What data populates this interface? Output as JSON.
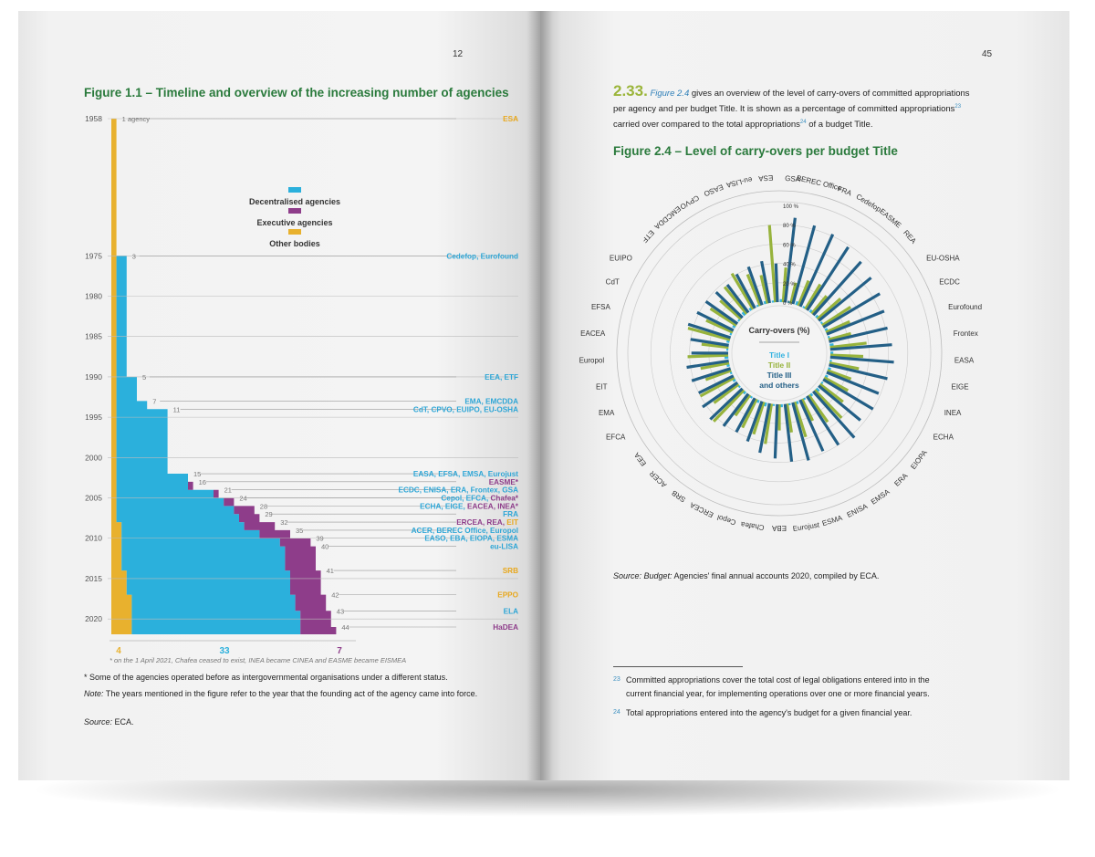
{
  "left": {
    "page_number": "12",
    "figure_title": "Figure 1.1 – Timeline and overview of the increasing number of agencies",
    "legend": {
      "decentralised": "Decentralised agencies",
      "executive": "Executive agencies",
      "other": "Other bodies"
    },
    "colors": {
      "decentralised": "#2bb0dc",
      "executive": "#8e3d8a",
      "other": "#e8b12e",
      "title": "#2a7a3c"
    },
    "first_label": "1 agency",
    "years": [
      "1958",
      "1975",
      "1980",
      "1985",
      "1990",
      "1995",
      "2000",
      "2005",
      "2010",
      "2015",
      "2020"
    ],
    "totals": {
      "other": "4",
      "decentralised": "33",
      "executive": "7"
    },
    "footnote_fig": "* on the 1 April 2021, Chafea ceased to exist, INEA became CINEA and EASME became EISMEA",
    "note1": "* Some of the agencies operated before as intergovernmental organisations under a different status.",
    "note2_label": "Note:",
    "note2": " The years mentioned in the figure refer to the year that the founding act of the agency came into force.",
    "source_label": "Source:",
    "source": " ECA."
  },
  "chart_data": [
    {
      "type": "area",
      "title": "Figure 1.1 – Timeline and overview of the increasing number of agencies",
      "series": [
        {
          "name": "Decentralised agencies"
        },
        {
          "name": "Executive agencies"
        },
        {
          "name": "Other bodies"
        }
      ],
      "milestones": [
        {
          "year": 1958,
          "count": "1 agency",
          "labels": [
            {
              "text": "ESA",
              "color": "#e8a81e"
            }
          ]
        },
        {
          "year": 1975,
          "count": "3",
          "labels": [
            {
              "text": "Cedefop, Eurofound",
              "color": "#2ea6d6"
            }
          ]
        },
        {
          "year": 1990,
          "count": "5",
          "labels": [
            {
              "text": "EEA, ETF",
              "color": "#2ea6d6"
            }
          ]
        },
        {
          "year": 1993,
          "count": "7",
          "labels": [
            {
              "text": "EMA, EMCDDA",
              "color": "#2ea6d6"
            }
          ]
        },
        {
          "year": 1994,
          "count": "11",
          "labels": [
            {
              "text": "CdT, CPVO, EUIPO, EU-OSHA",
              "color": "#2ea6d6"
            }
          ]
        },
        {
          "year": 2002,
          "count": "15",
          "labels": [
            {
              "text": "EASA, EFSA, EMSA, Eurojust",
              "color": "#2ea6d6"
            }
          ]
        },
        {
          "year": 2003,
          "count": "16",
          "labels": [
            {
              "text": "EASME*",
              "color": "#8e3d8a"
            }
          ]
        },
        {
          "year": 2004,
          "count": "21",
          "labels": [
            {
              "text": "ECDC, ENISA, ERA, Frontex, GSA",
              "color": "#2ea6d6"
            }
          ]
        },
        {
          "year": 2005,
          "count": "24",
          "labels": [
            {
              "text": "Cepol, EFCA, ",
              "color": "#2ea6d6"
            },
            {
              "text": "Chafea*",
              "color": "#8e3d8a"
            }
          ]
        },
        {
          "year": 2006,
          "count": "28",
          "labels": [
            {
              "text": "ECHA, EIGE, ",
              "color": "#2ea6d6"
            },
            {
              "text": "EACEA, INEA*",
              "color": "#8e3d8a"
            }
          ]
        },
        {
          "year": 2007,
          "count": "29",
          "labels": [
            {
              "text": "FRA",
              "color": "#2ea6d6"
            }
          ]
        },
        {
          "year": 2008,
          "count": "32",
          "labels": [
            {
              "text": "ERCEA, REA, ",
              "color": "#8e3d8a"
            },
            {
              "text": "EIT",
              "color": "#e8a81e"
            }
          ]
        },
        {
          "year": 2009,
          "count": "35",
          "labels": [
            {
              "text": "ACER, BEREC Office, Europol",
              "color": "#2ea6d6"
            }
          ]
        },
        {
          "year": 2010,
          "count": "39",
          "labels": [
            {
              "text": "EASO, EBA, EIOPA, ESMA",
              "color": "#2ea6d6"
            }
          ]
        },
        {
          "year": 2011,
          "count": "40",
          "labels": [
            {
              "text": "eu-LISA",
              "color": "#2ea6d6"
            }
          ]
        },
        {
          "year": 2014,
          "count": "41",
          "labels": [
            {
              "text": "SRB",
              "color": "#e8a81e"
            }
          ]
        },
        {
          "year": 2017,
          "count": "42",
          "labels": [
            {
              "text": "EPPO",
              "color": "#e8a81e"
            }
          ]
        },
        {
          "year": 2019,
          "count": "43",
          "labels": [
            {
              "text": "ELA",
              "color": "#2ea6d6"
            }
          ]
        },
        {
          "year": 2021,
          "count": "44",
          "labels": [
            {
              "text": "HaDEA",
              "color": "#8e3d8a"
            }
          ]
        }
      ]
    },
    {
      "type": "bar",
      "subtype": "radial",
      "title": "Figure 2.4 – Level of carry-overs per budget Title",
      "center_title": "Carry-overs (%)",
      "radial_ticks": [
        "0 %",
        "20 %",
        "40 %",
        "60 %",
        "80 %",
        "100 %"
      ],
      "rlim": [
        0,
        100
      ],
      "categories": [
        "GSA",
        "BEREC Office",
        "FRA",
        "Cedefop",
        "EASME",
        "REA",
        "EU-OSHA",
        "ECDC",
        "Eurofound",
        "Frontex",
        "EASA",
        "EIGE",
        "INEA",
        "ECHA",
        "EIOPA",
        "ERA",
        "EMSA",
        "ENISA",
        "ESMA",
        "Eurojust",
        "EBA",
        "Chafea",
        "Cepol",
        "ERCEA",
        "SRB",
        "ACER",
        "EEA",
        "EFCA",
        "EMA",
        "EIT",
        "Europol",
        "EACEA",
        "EFSA",
        "CdT",
        "EUIPO",
        "ETF",
        "EMCDDA",
        "CPVO",
        "EASO",
        "eu-LISA",
        "ESA"
      ],
      "series": [
        {
          "name": "Title I",
          "color": "#34b3e0",
          "values": [
            3,
            2,
            4,
            2,
            3,
            3,
            2,
            3,
            2,
            4,
            3,
            2,
            3,
            3,
            2,
            4,
            3,
            2,
            3,
            2,
            3,
            2,
            4,
            3,
            2,
            3,
            2,
            3,
            2,
            3,
            4,
            2,
            3,
            2,
            3,
            2,
            4,
            3,
            2,
            3,
            2
          ]
        },
        {
          "name": "Title II",
          "color": "#97b33c",
          "values": [
            36,
            22,
            28,
            30,
            24,
            32,
            35,
            27,
            24,
            38,
            34,
            31,
            26,
            28,
            30,
            40,
            34,
            25,
            38,
            30,
            27,
            42,
            35,
            33,
            26,
            45,
            32,
            40,
            28,
            30,
            42,
            28,
            45,
            30,
            32,
            29,
            36,
            43,
            35,
            30,
            80
          ]
        },
        {
          "name": "Title III and others",
          "color": "#235f86",
          "values": [
            88,
            84,
            82,
            78,
            74,
            70,
            68,
            64,
            62,
            64,
            66,
            62,
            58,
            60,
            56,
            64,
            60,
            58,
            62,
            60,
            56,
            52,
            44,
            40,
            42,
            46,
            44,
            40,
            42,
            44,
            38,
            40,
            46,
            42,
            40,
            38,
            36,
            40,
            42,
            44,
            40
          ]
        }
      ]
    }
  ],
  "right": {
    "page_number": "45",
    "para_number": "2.33.",
    "fig_ref": "Figure 2.4",
    "para_text_1": " gives an overview of the level of carry-overs of committed appropriations",
    "para_text_2": "per agency and per budget Title. It is shown as a percentage of committed appropriations",
    "sup23": "23",
    "para_text_3": "carried over compared to the total appropriations",
    "sup24": "24",
    "para_text_4": " of a budget Title.",
    "figure_title": "Figure 2.4 – Level of carry-overs per budget Title",
    "radial": {
      "center_title": "Carry-overs (%)",
      "title1": "Title I",
      "title2": "Title II",
      "title3a": "Title III",
      "title3b": "and others"
    },
    "source_label": "Source: Budget:",
    "source": " Agencies' final annual accounts 2020, compiled by ECA.",
    "fn23_num": "23",
    "fn23_text1": "Committed appropriations cover the total cost of legal obligations entered into in the",
    "fn23_text2": "current financial year, for implementing operations over one or more financial years.",
    "fn24_num": "24",
    "fn24_text": "Total appropriations entered into the agency's budget for a given financial year."
  }
}
